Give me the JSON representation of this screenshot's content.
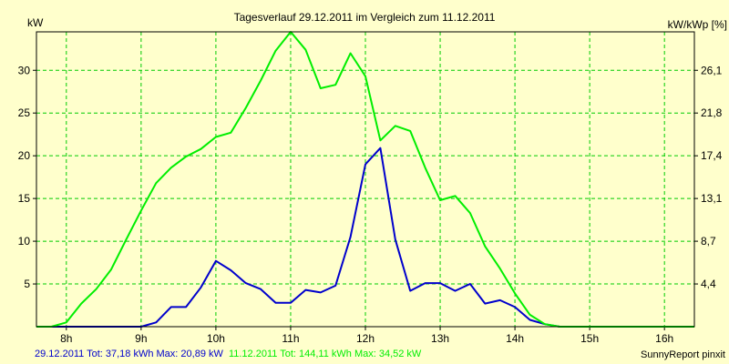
{
  "chart_data": {
    "type": "line",
    "title": "Tagesverlauf 29.12.2011 im Vergleich zum 11.12.2011",
    "ylabel": "kW",
    "y2label": "kW/kWp [%]",
    "xlim": [
      7.6,
      16.4
    ],
    "ylim": [
      0,
      34.5
    ],
    "x_ticks": [
      {
        "value": 8,
        "label": "8h"
      },
      {
        "value": 9,
        "label": "9h"
      },
      {
        "value": 10,
        "label": "10h"
      },
      {
        "value": 11,
        "label": "11h"
      },
      {
        "value": 12,
        "label": "12h"
      },
      {
        "value": 13,
        "label": "13h"
      },
      {
        "value": 14,
        "label": "14h"
      },
      {
        "value": 15,
        "label": "15h"
      },
      {
        "value": 16,
        "label": "16h"
      }
    ],
    "y_ticks": [
      {
        "value": 5,
        "label": "5"
      },
      {
        "value": 10,
        "label": "10"
      },
      {
        "value": 15,
        "label": "15"
      },
      {
        "value": 20,
        "label": "20"
      },
      {
        "value": 25,
        "label": "25"
      },
      {
        "value": 30,
        "label": "30"
      }
    ],
    "y2_ticks": [
      {
        "value": 5,
        "label": "4,4"
      },
      {
        "value": 10,
        "label": "8,7"
      },
      {
        "value": 15,
        "label": "13,1"
      },
      {
        "value": 20,
        "label": "17,4"
      },
      {
        "value": 25,
        "label": "21,8"
      },
      {
        "value": 30,
        "label": "26,1"
      }
    ],
    "grid": true,
    "legend_placement": "bottom-left",
    "series": [
      {
        "name": "29.12.2011 Tot: 37,18 kWh Max: 20,89 kW",
        "color": "#0000cc",
        "x": [
          7.6,
          7.8,
          8.0,
          8.2,
          8.4,
          8.6,
          8.8,
          9.0,
          9.2,
          9.4,
          9.6,
          9.8,
          10.0,
          10.2,
          10.4,
          10.6,
          10.8,
          11.0,
          11.2,
          11.4,
          11.6,
          11.8,
          12.0,
          12.2,
          12.4,
          12.6,
          12.8,
          13.0,
          13.2,
          13.4,
          13.6,
          13.8,
          14.0,
          14.2,
          14.4,
          14.6,
          14.8,
          15.0,
          15.2,
          15.4,
          15.6,
          15.8,
          16.0,
          16.2,
          16.4
        ],
        "values": [
          0,
          0,
          0,
          0,
          0,
          0,
          0,
          0,
          0.5,
          2.3,
          2.3,
          4.6,
          7.7,
          6.6,
          5.1,
          4.4,
          2.8,
          2.8,
          4.3,
          4.0,
          4.8,
          10.5,
          19.0,
          20.9,
          10.2,
          4.2,
          5.1,
          5.1,
          4.2,
          5.0,
          2.7,
          3.1,
          2.3,
          0.8,
          0.3,
          0,
          0,
          0,
          0,
          0,
          0,
          0,
          0,
          0,
          0
        ]
      },
      {
        "name": "11.12.2011 Tot: 144,11 kWh Max: 34,52 kW",
        "color": "#00ee00",
        "x": [
          7.6,
          7.8,
          8.0,
          8.2,
          8.4,
          8.6,
          8.8,
          9.0,
          9.2,
          9.4,
          9.6,
          9.8,
          10.0,
          10.2,
          10.4,
          10.6,
          10.8,
          11.0,
          11.2,
          11.4,
          11.6,
          11.8,
          12.0,
          12.2,
          12.4,
          12.6,
          12.8,
          13.0,
          13.2,
          13.4,
          13.6,
          13.8,
          14.0,
          14.2,
          14.4,
          14.6,
          14.8,
          15.0,
          15.2,
          15.4,
          15.6,
          15.8,
          16.0,
          16.2,
          16.4
        ],
        "values": [
          0,
          0,
          0.5,
          2.7,
          4.4,
          6.7,
          10.2,
          13.6,
          16.8,
          18.6,
          19.9,
          20.8,
          22.2,
          22.7,
          25.6,
          28.8,
          32.3,
          34.5,
          32.4,
          27.9,
          28.3,
          32.0,
          29.3,
          21.8,
          23.5,
          22.9,
          18.6,
          14.8,
          15.3,
          13.3,
          9.4,
          6.8,
          3.9,
          1.4,
          0.3,
          0,
          0,
          0,
          0,
          0,
          0,
          0,
          0,
          0,
          0
        ]
      }
    ],
    "footer_right": "SunnyReport pinxit"
  }
}
